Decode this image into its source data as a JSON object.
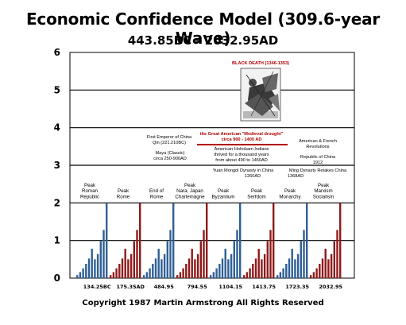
{
  "chart_data": {
    "type": "bar",
    "title": "Economic Confidence Model (309.6-year Wave)",
    "subtitle": "443.85BC - 2032.95AD",
    "footer": "Copyright 1987 Martin Armstrong All Rights Reserved",
    "ylim": [
      0,
      6
    ],
    "yticks": [
      "0",
      "1",
      "2",
      "3",
      "4",
      "5",
      "6"
    ],
    "grid": true,
    "xticks": [
      "134.25BC",
      "175.35AD",
      "484.95",
      "794.55",
      "1104.15",
      "1413.75",
      "1723.35",
      "2032.95"
    ],
    "waves": [
      {
        "color": "#2f5f95",
        "peak_label": [
          "Peak",
          "Roman",
          "Republic"
        ],
        "values": [
          0.08,
          0.16,
          0.26,
          0.38,
          0.52,
          0.78,
          0.5,
          0.64,
          0.98,
          1.28,
          2.0
        ]
      },
      {
        "color": "#8f1a1a",
        "peak_label": [
          "Peak",
          "Rome"
        ],
        "values": [
          0.08,
          0.16,
          0.26,
          0.38,
          0.52,
          0.78,
          0.5,
          0.64,
          0.98,
          1.28,
          2.0
        ]
      },
      {
        "color": "#2f5f95",
        "peak_label": [
          "End of",
          "Rome"
        ],
        "values": [
          0.08,
          0.16,
          0.26,
          0.38,
          0.52,
          0.78,
          0.5,
          0.64,
          0.98,
          1.28,
          2.0
        ]
      },
      {
        "color": "#8f1a1a",
        "peak_label": [
          "Peak",
          "Nara, Japan",
          "Charlemagne"
        ],
        "values": [
          0.08,
          0.16,
          0.26,
          0.38,
          0.52,
          0.78,
          0.5,
          0.64,
          0.98,
          1.28,
          2.0
        ]
      },
      {
        "color": "#2f5f95",
        "peak_label": [
          "Peak",
          "Byzantium"
        ],
        "values": [
          0.08,
          0.16,
          0.26,
          0.38,
          0.52,
          0.78,
          0.5,
          0.64,
          0.98,
          1.28,
          2.0
        ]
      },
      {
        "color": "#8f1a1a",
        "peak_label": [
          "Peak",
          "Serfdom"
        ],
        "values": [
          0.08,
          0.16,
          0.26,
          0.38,
          0.52,
          0.78,
          0.5,
          0.64,
          0.98,
          1.28,
          2.0
        ]
      },
      {
        "color": "#2f5f95",
        "peak_label": [
          "Peak",
          "Monarchy"
        ],
        "values": [
          0.08,
          0.16,
          0.26,
          0.38,
          0.52,
          0.78,
          0.5,
          0.64,
          0.98,
          1.28,
          2.0
        ]
      },
      {
        "color": "#8f1a1a",
        "peak_label": [
          "Peak",
          "Marxism",
          "Socialism"
        ],
        "values": [
          0.08,
          0.16,
          0.26,
          0.38,
          0.52,
          0.78,
          0.5,
          0.64,
          0.98,
          1.28,
          2.0
        ]
      }
    ],
    "annotations": {
      "black_death": "BLACK DEATH (1346-1353)",
      "drought_1": "the Great American \"Medieval drought\"",
      "drought_2": "circa 900 - 1400 AD",
      "hohokam_1": "American Hohokam Indians",
      "hohokam_2": "thrived for a thousand years",
      "hohokam_3": "from about 490 to 1450AD",
      "qin_1": "First Emperor of China",
      "qin_2": "Qin (221.210BC)",
      "maya_1": "Maya (Classic)",
      "maya_2": "circa 250-900AD",
      "french_1": "American & French",
      "french_2": "Revolutions",
      "roc_1": "Republic of China",
      "roc_2": "1912",
      "yuan_1": "Yuan Mongol Dynasty in China",
      "yuan_2": "1260AD",
      "ming_1": "Ming Dynasty Retakes China",
      "ming_2": "1368AD"
    },
    "colors": {
      "blue": "#2f5f95",
      "red": "#8f1a1a",
      "drought_line": "#b00000"
    }
  }
}
